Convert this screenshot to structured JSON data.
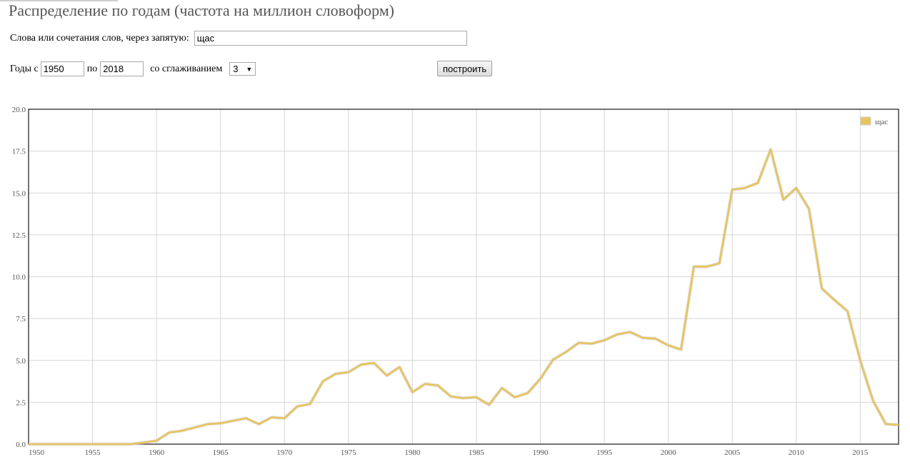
{
  "page": {
    "title": "Распределение по годам (частота на миллион словоформ)"
  },
  "form": {
    "words_label": "Слова или сочетания слов, через запятую:",
    "words_value": "щас",
    "years_from_label": "Годы с",
    "year_from": "1950",
    "years_to_label": "по",
    "year_to": "2018",
    "smoothing_label": "со сглаживанием",
    "smoothing_value": "3",
    "build_button": "построить"
  },
  "colors": {
    "series": "#e8c45a",
    "axis": "#444444",
    "grid": "#d6d6d6"
  },
  "chart_data": {
    "type": "line",
    "title": "",
    "xlabel": "",
    "ylabel": "",
    "xlim": [
      1950,
      2018
    ],
    "ylim": [
      0,
      20
    ],
    "x_ticks": [
      "1950",
      "1955",
      "1960",
      "1965",
      "1970",
      "1975",
      "1980",
      "1985",
      "1990",
      "1995",
      "2000",
      "2005",
      "2010",
      "2015"
    ],
    "y_ticks": [
      "0.0",
      "2.5",
      "5.0",
      "7.5",
      "10.0",
      "12.5",
      "15.0",
      "17.5",
      "20.0"
    ],
    "grid": true,
    "legend_position": "top-right",
    "x": [
      1950,
      1951,
      1952,
      1953,
      1954,
      1955,
      1956,
      1957,
      1958,
      1959,
      1960,
      1961,
      1962,
      1963,
      1964,
      1965,
      1966,
      1967,
      1968,
      1969,
      1970,
      1971,
      1972,
      1973,
      1974,
      1975,
      1976,
      1977,
      1978,
      1979,
      1980,
      1981,
      1982,
      1983,
      1984,
      1985,
      1986,
      1987,
      1988,
      1989,
      1990,
      1991,
      1992,
      1993,
      1994,
      1995,
      1996,
      1997,
      1998,
      1999,
      2000,
      2001,
      2002,
      2003,
      2004,
      2005,
      2006,
      2007,
      2008,
      2009,
      2010,
      2011,
      2012,
      2013,
      2014,
      2015,
      2016,
      2017,
      2018
    ],
    "series": [
      {
        "name": "щас",
        "values": [
          0.0,
          0.0,
          0.0,
          0.0,
          0.0,
          0.0,
          0.0,
          0.0,
          0.0,
          0.1,
          0.2,
          0.7,
          0.8,
          1.0,
          1.2,
          1.25,
          1.4,
          1.55,
          1.2,
          1.6,
          1.55,
          2.25,
          2.4,
          3.75,
          4.2,
          4.3,
          4.75,
          4.85,
          4.1,
          4.6,
          3.1,
          3.6,
          3.5,
          2.85,
          2.75,
          2.8,
          2.35,
          3.35,
          2.8,
          3.05,
          3.9,
          5.05,
          5.5,
          6.05,
          6.0,
          6.2,
          6.55,
          6.7,
          6.35,
          6.3,
          5.9,
          5.65,
          10.6,
          10.6,
          10.8,
          15.2,
          15.3,
          15.6,
          17.6,
          14.6,
          15.3,
          14.05,
          9.3,
          8.6,
          7.95,
          5.0,
          2.6,
          1.2,
          1.15
        ]
      }
    ]
  }
}
